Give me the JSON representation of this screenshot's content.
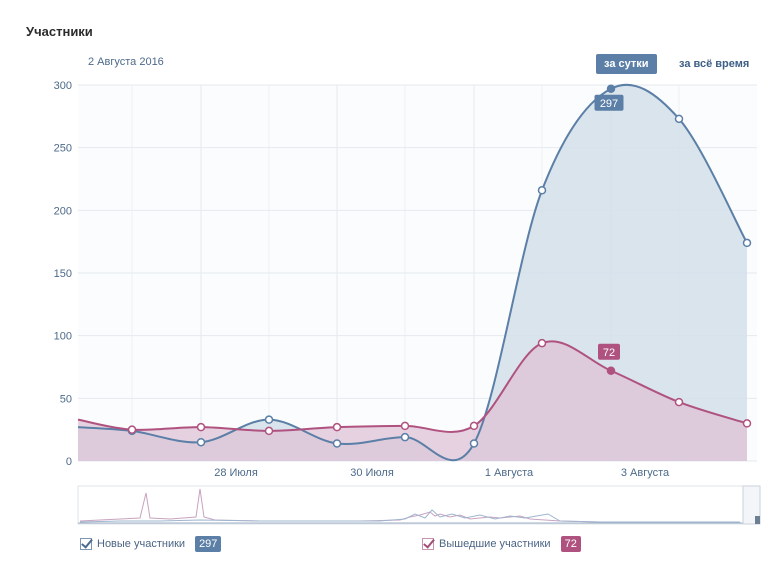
{
  "title": "Участники",
  "date_label": "2 Августа 2016",
  "buttons": {
    "day": "за сутки",
    "all_time": "за всё время"
  },
  "colors": {
    "blue": "#5b7fa6",
    "pink": "#b0527f",
    "blue_fill": "#d4dfea",
    "pink_fill": "#ddc3d6"
  },
  "chart_data": {
    "type": "area",
    "y_ticks": [
      "300",
      "250",
      "200",
      "150",
      "100",
      "50",
      "0"
    ],
    "ylim": [
      0,
      300
    ],
    "x_labels": [
      "28 Июля",
      "30 Июля",
      "1 Августа",
      "3 Августа"
    ],
    "grid": true,
    "series": [
      {
        "name": "Новые участники",
        "color": "#5b7fa6",
        "values": [
          27,
          24,
          15,
          33,
          14,
          19,
          14,
          216,
          297,
          273,
          174
        ]
      },
      {
        "name": "Вышедшие участники",
        "color": "#b0527f",
        "values": [
          33,
          25,
          27,
          24,
          27,
          28,
          28,
          94,
          72,
          47,
          30
        ]
      }
    ],
    "highlight_labels": [
      "297",
      "72"
    ]
  },
  "legend": [
    {
      "label": "Новые участники",
      "value": "297"
    },
    {
      "label": "Вышедшие участники",
      "value": "72"
    }
  ]
}
